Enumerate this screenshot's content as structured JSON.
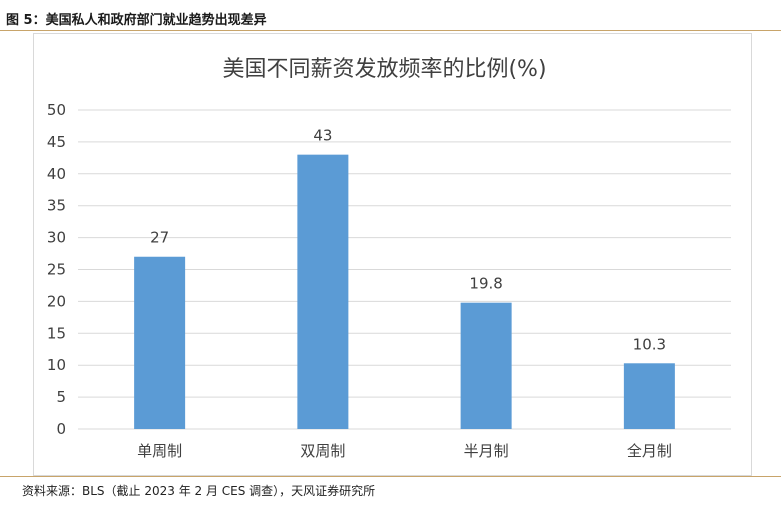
{
  "figure_title": "图 5：美国私人和政府部门就业趋势出现差异",
  "source": "资料来源：BLS（截止 2023 年 2 月 CES 调查），天风证券研究所",
  "colors": {
    "bar": "#5b9bd5",
    "grid": "#d9d9d9",
    "rule": "#c8a46a",
    "text": "#404040"
  },
  "chart_data": {
    "type": "bar",
    "title": "美国不同薪资发放频率的比例(%)",
    "categories": [
      "单周制",
      "双周制",
      "半月制",
      "全月制"
    ],
    "values": [
      27,
      43,
      19.8,
      10.3
    ],
    "value_labels": [
      "27",
      "43",
      "19.8",
      "10.3"
    ],
    "ylim": [
      0,
      50
    ],
    "yticks": [
      0,
      5,
      10,
      15,
      20,
      25,
      30,
      35,
      40,
      45,
      50
    ],
    "grid": true,
    "legend": "none",
    "xlabel": "",
    "ylabel": ""
  }
}
